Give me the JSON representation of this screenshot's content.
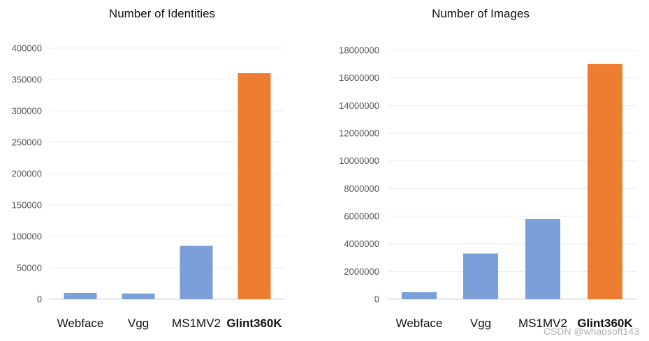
{
  "chart_data": [
    {
      "type": "bar",
      "title": "Number of Identities",
      "categories": [
        "Webface",
        "Vgg",
        "MS1MV2",
        "Glint360K"
      ],
      "values": [
        10000,
        9000,
        85000,
        360000
      ],
      "ylim": [
        0,
        400000
      ],
      "yticks": [
        0,
        50000,
        100000,
        150000,
        200000,
        250000,
        300000,
        350000,
        400000
      ],
      "bar_colors": [
        "#7b9fd8",
        "#7b9fd8",
        "#7b9fd8",
        "#ed7d31"
      ],
      "highlight_category": "Glint360K",
      "grid": true
    },
    {
      "type": "bar",
      "title": "Number of Images",
      "categories": [
        "Webface",
        "Vgg",
        "MS1MV2",
        "Glint360K"
      ],
      "values": [
        500000,
        3300000,
        5800000,
        17000000
      ],
      "ylim": [
        0,
        18000000
      ],
      "yticks": [
        0,
        2000000,
        4000000,
        6000000,
        8000000,
        10000000,
        12000000,
        14000000,
        16000000,
        18000000
      ],
      "bar_colors": [
        "#7b9fd8",
        "#7b9fd8",
        "#7b9fd8",
        "#ed7d31"
      ],
      "highlight_category": "Glint360K",
      "grid": true
    }
  ],
  "watermark": "CSDN @whaosoft143"
}
